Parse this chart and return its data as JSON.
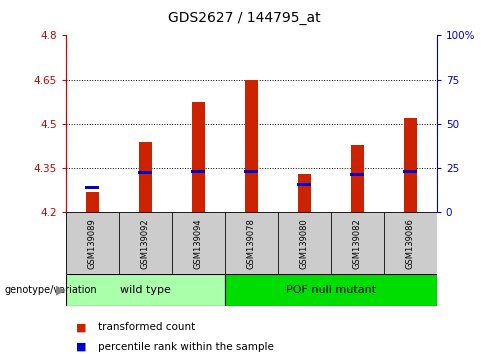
{
  "title": "GDS2627 / 144795_at",
  "samples": [
    "GSM139089",
    "GSM139092",
    "GSM139094",
    "GSM139078",
    "GSM139080",
    "GSM139082",
    "GSM139086"
  ],
  "transformed_counts": [
    4.27,
    4.44,
    4.575,
    4.65,
    4.33,
    4.43,
    4.52
  ],
  "percentile_ranks": [
    4.285,
    4.335,
    4.338,
    4.338,
    4.295,
    4.33,
    4.338
  ],
  "baseline": 4.2,
  "ylim_left": [
    4.2,
    4.8
  ],
  "ylim_right": [
    0,
    100
  ],
  "yticks_left": [
    4.2,
    4.35,
    4.5,
    4.65,
    4.8
  ],
  "yticks_right": [
    0,
    25,
    50,
    75,
    100
  ],
  "ytick_labels_left": [
    "4.2",
    "4.35",
    "4.5",
    "4.65",
    "4.8"
  ],
  "ytick_labels_right": [
    "0",
    "25",
    "50",
    "75",
    "100%"
  ],
  "hgrid_lines": [
    4.35,
    4.5,
    4.65
  ],
  "groups": [
    {
      "label": "wild type",
      "indices": [
        0,
        1,
        2
      ],
      "color": "#aaffaa"
    },
    {
      "label": "POF null mutant",
      "indices": [
        3,
        4,
        5,
        6
      ],
      "color": "#00dd00"
    }
  ],
  "bar_color": "#cc2200",
  "percentile_color": "#0000cc",
  "bar_width": 0.25,
  "percentile_bar_height": 0.01,
  "sample_box_color": "#cccccc",
  "group_label_text": "genotype/variation",
  "legend_items": [
    {
      "label": "transformed count",
      "color": "#cc2200"
    },
    {
      "label": "percentile rank within the sample",
      "color": "#0000cc"
    }
  ]
}
